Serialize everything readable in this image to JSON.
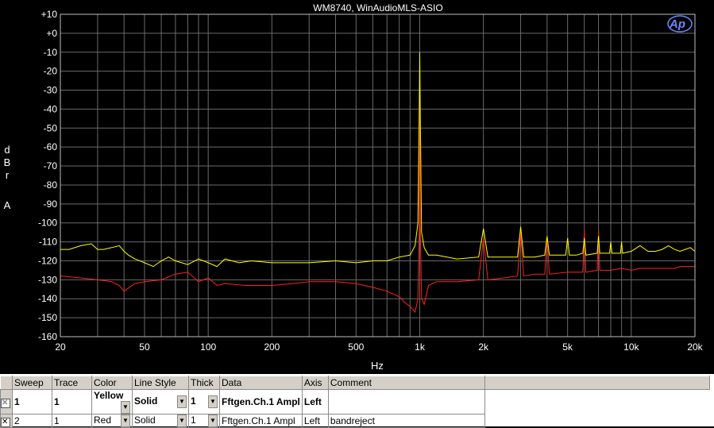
{
  "chart_data": {
    "type": "line",
    "title": "WM8740, WinAudioMLS-ASIO",
    "xlabel": "Hz",
    "ylabel": "d B r A",
    "x_scale": "log",
    "xlim": [
      20,
      20000
    ],
    "ylim": [
      -160,
      10
    ],
    "x_ticks": [
      20,
      50,
      100,
      200,
      500,
      1000,
      2000,
      5000,
      10000,
      20000
    ],
    "x_tick_labels": [
      "20",
      "50",
      "100",
      "200",
      "500",
      "1k",
      "2k",
      "5k",
      "10k",
      "20k"
    ],
    "y_ticks": [
      10,
      0,
      -10,
      -20,
      -30,
      -40,
      -50,
      -60,
      -70,
      -80,
      -90,
      -100,
      -110,
      -120,
      -130,
      -140,
      -150,
      -160
    ],
    "y_tick_labels": [
      "+10",
      "+0",
      "-10",
      "-20",
      "-30",
      "-40",
      "-50",
      "-60",
      "-70",
      "-80",
      "-90",
      "-100",
      "-110",
      "-120",
      "-130",
      "-140",
      "-150",
      "-160"
    ],
    "grid": true,
    "series": [
      {
        "color": "#ffff00",
        "x": [
          20,
          22,
          25,
          28,
          30,
          32,
          35,
          38,
          40,
          42,
          45,
          50,
          55,
          60,
          65,
          70,
          75,
          80,
          90,
          100,
          110,
          120,
          140,
          160,
          200,
          250,
          300,
          400,
          500,
          600,
          700,
          800,
          900,
          950,
          980,
          995,
          1000,
          1005,
          1020,
          1050,
          1100,
          1200,
          1500,
          1900,
          2000,
          2100,
          2500,
          2900,
          3000,
          3100,
          3500,
          3900,
          4000,
          4100,
          4500,
          4900,
          5000,
          5100,
          5500,
          5900,
          6000,
          6100,
          6900,
          7000,
          7100,
          7900,
          8000,
          8100,
          8900,
          9000,
          9100,
          10000,
          11000,
          12000,
          13000,
          14000,
          15000,
          16000,
          17000,
          18000,
          19000,
          20000
        ],
        "y": [
          -114,
          -114,
          -112,
          -111,
          -114,
          -114,
          -113,
          -112,
          -115,
          -117,
          -119,
          -121,
          -123,
          -120,
          -118,
          -120,
          -121,
          -122,
          -119,
          -121,
          -123,
          -119,
          -121,
          -120,
          -121,
          -121,
          -121,
          -120,
          -121,
          -120,
          -120,
          -118,
          -117,
          -112,
          -100,
          -40,
          -10,
          -40,
          -105,
          -113,
          -117,
          -117,
          -119,
          -118,
          -103,
          -118,
          -118,
          -118,
          -102,
          -118,
          -118,
          -117,
          -107,
          -117,
          -117,
          -117,
          -108,
          -117,
          -117,
          -116,
          -108,
          -117,
          -116,
          -107,
          -116,
          -116,
          -110,
          -116,
          -116,
          -110,
          -116,
          -115,
          -112,
          -115,
          -115,
          -114,
          -112,
          -114,
          -115,
          -114,
          -113,
          -115
        ]
      },
      {
        "color": "#ff2020",
        "x": [
          20,
          25,
          30,
          35,
          38,
          40,
          45,
          50,
          60,
          70,
          80,
          90,
          100,
          110,
          120,
          150,
          200,
          250,
          300,
          400,
          500,
          600,
          700,
          800,
          850,
          900,
          950,
          980,
          995,
          1000,
          1005,
          1020,
          1050,
          1100,
          1200,
          1500,
          1900,
          2000,
          2100,
          2500,
          2900,
          3000,
          3100,
          3500,
          3900,
          4000,
          4100,
          5000,
          5900,
          6000,
          6100,
          6900,
          7000,
          7100,
          8000,
          9000,
          10000,
          11000,
          12000,
          13000,
          14000,
          15000,
          16000,
          17000,
          18000,
          19000,
          20000
        ],
        "y": [
          -128,
          -129,
          -130,
          -131,
          -133,
          -136,
          -132,
          -131,
          -130,
          -127,
          -126,
          -131,
          -129,
          -133,
          -132,
          -133,
          -133,
          -132,
          -131,
          -131,
          -132,
          -134,
          -136,
          -139,
          -142,
          -144,
          -147,
          -140,
          -100,
          -20,
          -100,
          -140,
          -143,
          -133,
          -131,
          -131,
          -130,
          -108,
          -130,
          -129,
          -128,
          -105,
          -128,
          -127,
          -127,
          -108,
          -127,
          -126,
          -126,
          -104,
          -126,
          -125,
          -104,
          -125,
          -125,
          -124,
          -125,
          -124,
          -124,
          -124,
          -124,
          -124,
          -124,
          -123,
          -123,
          -123,
          -123
        ]
      }
    ]
  },
  "logo_text": "Ap",
  "sweep_table": {
    "headers": [
      "Sweep",
      "Trace",
      "Color",
      "Line Style",
      "Thick",
      "Data",
      "Axis",
      "Comment"
    ],
    "rows": [
      {
        "checked": "✕",
        "sweep": "1",
        "trace": "1",
        "color": "Yellow",
        "line_style": "Solid",
        "thick": "1",
        "data": "Fftgen.Ch.1 Ampl",
        "axis": "Left",
        "comment": ""
      },
      {
        "checked": "✕",
        "sweep": "2",
        "trace": "1",
        "color": "Red",
        "line_style": "Solid",
        "thick": "1",
        "data": "Fftgen.Ch.1 Ampl",
        "axis": "Left",
        "comment": "bandreject"
      }
    ],
    "dropdown_glyph": "▼"
  }
}
